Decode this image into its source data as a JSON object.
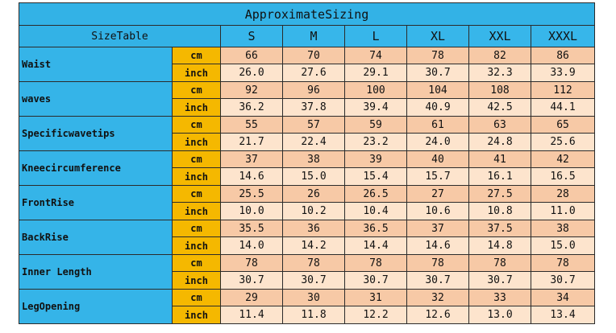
{
  "title": "ApproximateSizing",
  "header": {
    "label": "SizeTable",
    "sizes": [
      "S",
      "M",
      "L",
      "XL",
      "XXL",
      "XXXL"
    ]
  },
  "units": {
    "cm": "cm",
    "inch": "inch"
  },
  "rows": [
    {
      "name": "Waist",
      "cm": [
        "66",
        "70",
        "74",
        "78",
        "82",
        "86"
      ],
      "inch": [
        "26.0",
        "27.6",
        "29.1",
        "30.7",
        "32.3",
        "33.9"
      ]
    },
    {
      "name": "waves",
      "cm": [
        "92",
        "96",
        "100",
        "104",
        "108",
        "112"
      ],
      "inch": [
        "36.2",
        "37.8",
        "39.4",
        "40.9",
        "42.5",
        "44.1"
      ]
    },
    {
      "name": "Specificwavetips",
      "cm": [
        "55",
        "57",
        "59",
        "61",
        "63",
        "65"
      ],
      "inch": [
        "21.7",
        "22.4",
        "23.2",
        "24.0",
        "24.8",
        "25.6"
      ]
    },
    {
      "name": "Kneecircumference",
      "cm": [
        "37",
        "38",
        "39",
        "40",
        "41",
        "42"
      ],
      "inch": [
        "14.6",
        "15.0",
        "15.4",
        "15.7",
        "16.1",
        "16.5"
      ]
    },
    {
      "name": "FrontRise",
      "cm": [
        "25.5",
        "26",
        "26.5",
        "27",
        "27.5",
        "28"
      ],
      "inch": [
        "10.0",
        "10.2",
        "10.4",
        "10.6",
        "10.8",
        "11.0"
      ]
    },
    {
      "name": "BackRise",
      "cm": [
        "35.5",
        "36",
        "36.5",
        "37",
        "37.5",
        "38"
      ],
      "inch": [
        "14.0",
        "14.2",
        "14.4",
        "14.6",
        "14.8",
        "15.0"
      ]
    },
    {
      "name": "Inner Length",
      "cm": [
        "78",
        "78",
        "78",
        "78",
        "78",
        "78"
      ],
      "inch": [
        "30.7",
        "30.7",
        "30.7",
        "30.7",
        "30.7",
        "30.7"
      ]
    },
    {
      "name": "LegOpening",
      "cm": [
        "29",
        "30",
        "31",
        "32",
        "33",
        "34"
      ],
      "inch": [
        "11.4",
        "11.8",
        "12.2",
        "12.6",
        "13.0",
        "13.4"
      ]
    }
  ],
  "colors": {
    "header_blue": "#37b6ea",
    "unit_yellow": "#f5b800",
    "cm_fill": "#f7c9a6",
    "inch_fill": "#fde4cd"
  }
}
